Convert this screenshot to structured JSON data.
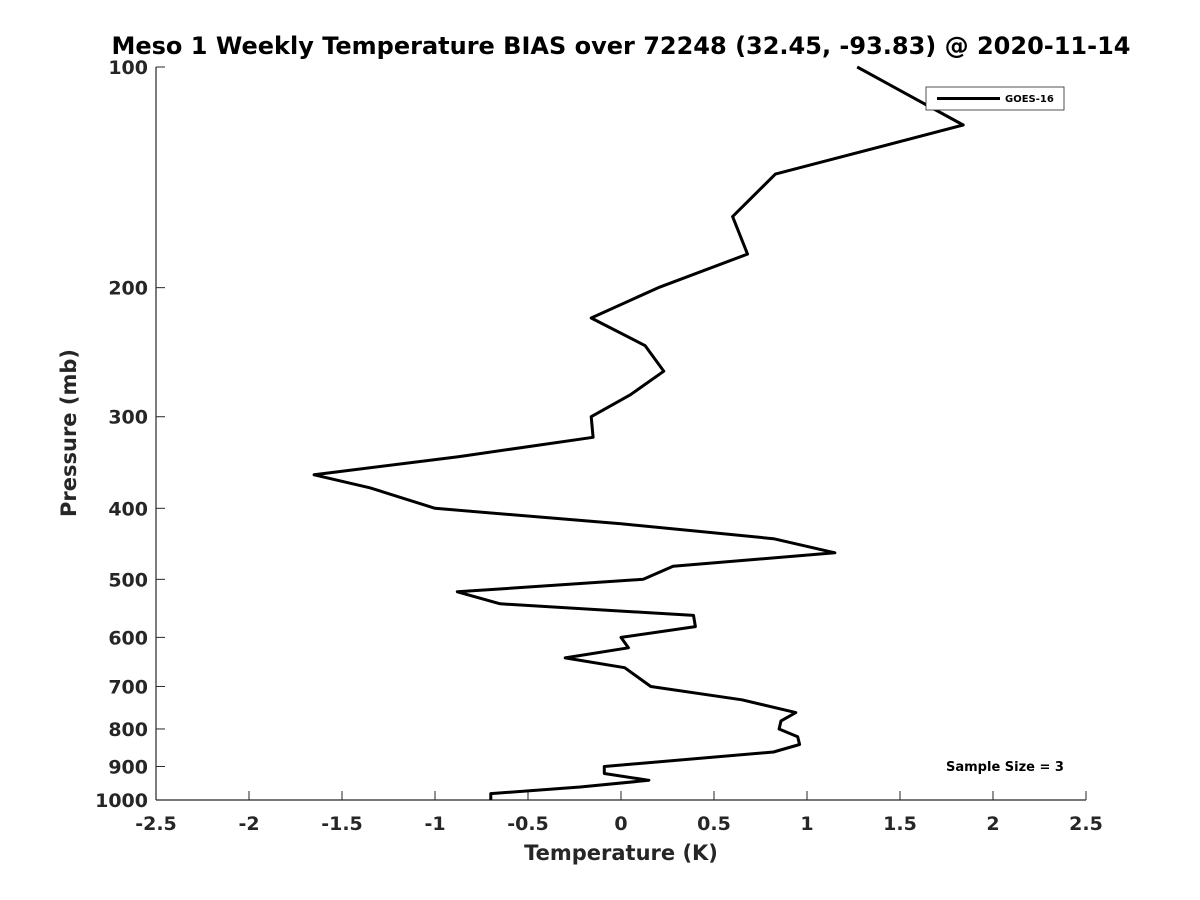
{
  "chart_data": {
    "type": "line",
    "title": "Meso 1 Weekly Temperature BIAS over 72248 (32.45, -93.83) @ 2020-11-14",
    "xlabel": "Temperature (K)",
    "ylabel": "Pressure (mb)",
    "xlim": [
      -2.5,
      2.5
    ],
    "ylim": [
      100,
      1000
    ],
    "y_scale": "log",
    "y_reversed": true,
    "grid": false,
    "legend_position": "top-right",
    "x_ticks": [
      "-2.5",
      "-2",
      "-1.5",
      "-1",
      "-0.5",
      "0",
      "0.5",
      "1",
      "1.5",
      "2",
      "2.5"
    ],
    "y_ticks": [
      "100",
      "200",
      "300",
      "400",
      "500",
      "600",
      "700",
      "800",
      "900",
      "1000"
    ],
    "annotation": "Sample Size = 3",
    "series": [
      {
        "name": "GOES-16",
        "color": "#000000",
        "points": [
          {
            "x": 1.27,
            "p": 100
          },
          {
            "x": 1.84,
            "p": 120
          },
          {
            "x": 0.83,
            "p": 140
          },
          {
            "x": 0.6,
            "p": 160
          },
          {
            "x": 0.68,
            "p": 180
          },
          {
            "x": 0.2,
            "p": 200
          },
          {
            "x": -0.16,
            "p": 220
          },
          {
            "x": 0.13,
            "p": 240
          },
          {
            "x": 0.23,
            "p": 260
          },
          {
            "x": 0.05,
            "p": 280
          },
          {
            "x": -0.16,
            "p": 300
          },
          {
            "x": -0.15,
            "p": 320
          },
          {
            "x": -0.87,
            "p": 340
          },
          {
            "x": -1.65,
            "p": 360
          },
          {
            "x": -1.35,
            "p": 375
          },
          {
            "x": -1.0,
            "p": 400
          },
          {
            "x": 0.0,
            "p": 420
          },
          {
            "x": 0.82,
            "p": 440
          },
          {
            "x": 1.15,
            "p": 460
          },
          {
            "x": 0.28,
            "p": 480
          },
          {
            "x": 0.12,
            "p": 500
          },
          {
            "x": -0.88,
            "p": 520
          },
          {
            "x": -0.65,
            "p": 540
          },
          {
            "x": 0.39,
            "p": 560
          },
          {
            "x": 0.4,
            "p": 580
          },
          {
            "x": 0.0,
            "p": 600
          },
          {
            "x": 0.04,
            "p": 620
          },
          {
            "x": -0.3,
            "p": 640
          },
          {
            "x": 0.02,
            "p": 660
          },
          {
            "x": 0.16,
            "p": 700
          },
          {
            "x": 0.65,
            "p": 730
          },
          {
            "x": 0.94,
            "p": 760
          },
          {
            "x": 0.86,
            "p": 780
          },
          {
            "x": 0.85,
            "p": 800
          },
          {
            "x": 0.95,
            "p": 820
          },
          {
            "x": 0.96,
            "p": 840
          },
          {
            "x": 0.82,
            "p": 860
          },
          {
            "x": -0.09,
            "p": 900
          },
          {
            "x": -0.09,
            "p": 920
          },
          {
            "x": 0.15,
            "p": 940
          },
          {
            "x": -0.22,
            "p": 960
          },
          {
            "x": -0.7,
            "p": 980
          },
          {
            "x": -0.7,
            "p": 1000
          }
        ]
      }
    ]
  }
}
